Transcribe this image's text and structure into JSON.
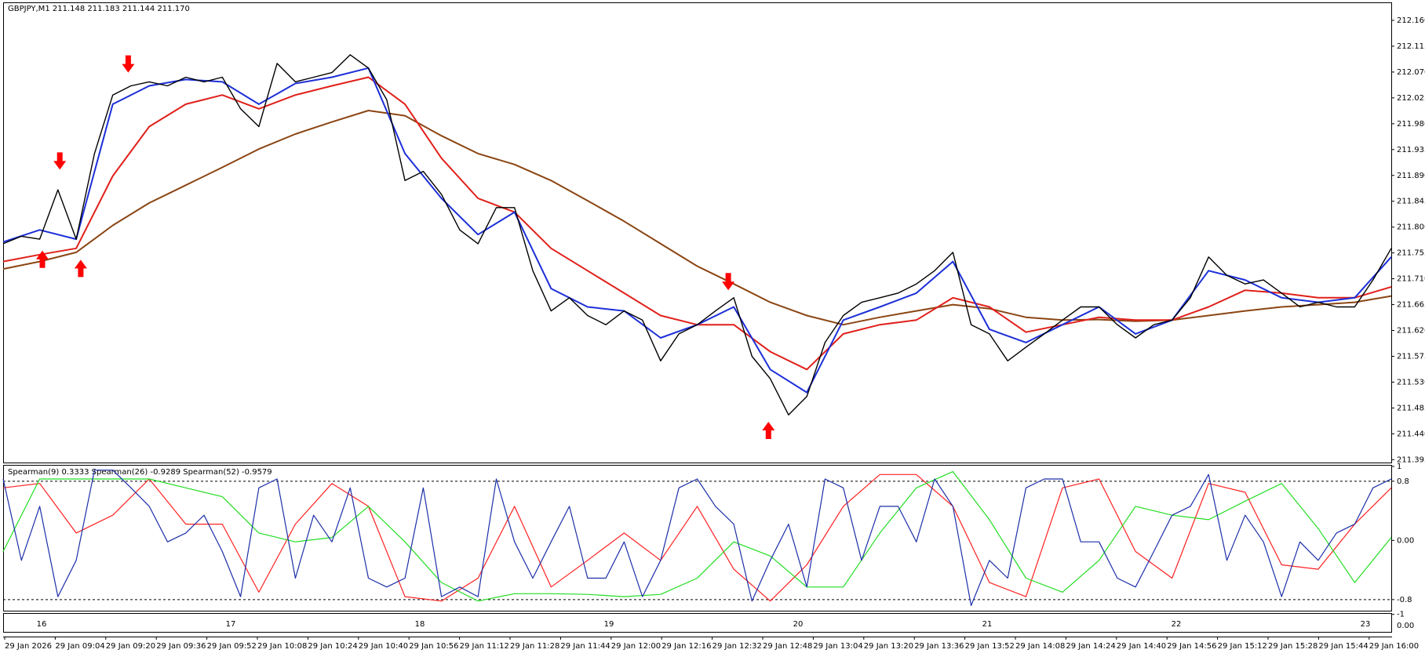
{
  "chart_data": [
    {
      "type": "line",
      "title": "GBPJPY,M1  211.148 211.183 211.144 211.170",
      "ylim": [
        211.39,
        212.19
      ],
      "yticks": [
        {
          "value": 212.16,
          "label": "212.160"
        },
        212.115,
        {
          "value": 212.07,
          "label": "212.070"
        },
        212.025,
        {
          "value": 211.98,
          "label": "211.980"
        },
        211.935,
        {
          "value": 211.89,
          "label": "211.890"
        },
        211.845,
        {
          "value": 211.8,
          "label": "211.800"
        },
        211.755,
        {
          "value": 211.71,
          "label": "211.710"
        },
        211.665,
        {
          "value": 211.62,
          "label": "211.620"
        },
        211.575,
        {
          "value": 211.53,
          "label": "211.530"
        },
        211.485,
        {
          "value": 211.44,
          "label": "211.440"
        },
        211.395
      ],
      "series": [
        {
          "color": "#000000",
          "values": [
            211.771,
            211.784,
            211.779,
            211.865,
            211.779,
            211.928,
            212.03,
            212.046,
            212.053,
            212.046,
            212.061,
            212.053,
            212.061,
            212.006,
            211.975,
            212.085,
            212.053,
            212.061,
            212.069,
            212.1,
            212.077,
            212.022,
            211.881,
            211.897,
            211.857,
            211.795,
            211.771,
            211.834,
            211.834,
            211.724,
            211.654,
            211.677,
            211.646,
            211.63,
            211.654,
            211.638,
            211.567,
            211.614,
            211.63,
            211.654,
            211.677,
            211.575,
            211.536,
            211.473,
            211.505,
            211.599,
            211.646,
            211.669,
            211.677,
            211.685,
            211.701,
            211.724,
            211.756,
            211.63,
            211.614,
            211.567,
            211.591,
            211.614,
            211.638,
            211.661,
            211.661,
            211.63,
            211.607,
            211.63,
            211.638,
            211.677,
            211.748,
            211.716,
            211.701,
            211.708,
            211.685,
            211.661,
            211.669,
            211.661,
            211.661,
            211.708,
            211.763
          ]
        }
      ],
      "ma_series": [
        {
          "color": "#8b4513",
          "values": [
            211.727,
            211.74,
            211.756,
            211.803,
            211.842,
            211.873,
            211.904,
            211.936,
            211.962,
            211.983,
            212.003,
            211.994,
            211.959,
            211.928,
            211.909,
            211.881,
            211.846,
            211.81,
            211.771,
            211.732,
            211.701,
            211.669,
            211.646,
            211.63,
            211.643,
            211.654,
            211.665,
            211.658,
            211.643,
            211.638,
            211.639,
            211.636,
            211.638,
            211.646,
            211.654,
            211.661,
            211.665,
            211.669,
            211.68
          ]
        },
        {
          "color": "#e0201a",
          "values": [
            211.74,
            211.752,
            211.763,
            211.889,
            211.975,
            212.014,
            212.03,
            212.006,
            212.03,
            212.046,
            212.061,
            212.014,
            211.92,
            211.85,
            211.826,
            211.763,
            211.724,
            211.685,
            211.646,
            211.63,
            211.63,
            211.583,
            211.552,
            211.614,
            211.63,
            211.638,
            211.677,
            211.661,
            211.617,
            211.63,
            211.643,
            211.638,
            211.638,
            211.661,
            211.69,
            211.685,
            211.677,
            211.677,
            211.696
          ]
        },
        {
          "color": "#1c2fd8",
          "values": [
            211.774,
            211.795,
            211.779,
            212.014,
            212.046,
            212.057,
            212.053,
            212.014,
            212.05,
            212.061,
            212.077,
            211.928,
            211.85,
            211.787,
            211.826,
            211.693,
            211.661,
            211.654,
            211.607,
            211.63,
            211.661,
            211.552,
            211.512,
            211.638,
            211.661,
            211.685,
            211.74,
            211.622,
            211.599,
            211.63,
            211.661,
            211.614,
            211.638,
            211.724,
            211.708,
            211.677,
            211.669,
            211.677,
            211.748
          ]
        }
      ],
      "arrows": [
        {
          "direction": "down",
          "x": 3.1,
          "y": 211.9
        },
        {
          "direction": "down",
          "x": 6.85,
          "y": 212.069
        },
        {
          "direction": "down",
          "x": 39.7,
          "y": 211.69
        },
        {
          "direction": "up",
          "x": 2.15,
          "y": 211.759
        },
        {
          "direction": "up",
          "x": 4.25,
          "y": 211.743
        },
        {
          "direction": "up",
          "x": 41.9,
          "y": 211.461
        }
      ],
      "arrow_color": "#ff0000"
    },
    {
      "type": "line",
      "title": "Spearman(9) 0.3333  Spearman(26) -0.9289  Spearman(52) -0.9579",
      "ylim": [
        -0.95,
        1.01
      ],
      "yticks": [
        1,
        0.8,
        {
          "value": 0,
          "label": "0.00"
        },
        -0.8,
        -1
      ],
      "levels": [
        0.8,
        -0.8
      ],
      "series": [
        {
          "color": "#1c2fa8",
          "values": [
            0.83,
            -0.27,
            0.46,
            -0.76,
            -0.27,
            0.95,
            0.95,
            0.71,
            0.46,
            -0.02,
            0.1,
            0.34,
            -0.15,
            -0.76,
            0.71,
            0.83,
            -0.51,
            0.34,
            -0.02,
            0.71,
            -0.51,
            -0.63,
            -0.51,
            0.71,
            -0.76,
            -0.63,
            -0.76,
            0.83,
            -0.02,
            -0.51,
            -0.02,
            0.46,
            -0.51,
            -0.51,
            -0.02,
            -0.76,
            -0.27,
            0.71,
            0.83,
            0.46,
            0.22,
            -0.82,
            -0.27,
            0.22,
            -0.63,
            0.83,
            0.71,
            -0.27,
            0.46,
            0.46,
            -0.02,
            0.83,
            0.46,
            -0.88,
            -0.27,
            -0.51,
            0.71,
            0.83,
            0.83,
            -0.02,
            -0.02,
            -0.51,
            -0.63,
            -0.15,
            0.34,
            0.46,
            0.89,
            -0.27,
            0.34,
            -0.02,
            -0.76,
            -0.02,
            -0.27,
            0.1,
            0.22,
            0.71,
            0.83
          ]
        }
      ],
      "slow_series": [
        {
          "color": "#ff2020",
          "values": [
            0.71,
            0.77,
            0.1,
            0.34,
            0.83,
            0.22,
            0.22,
            -0.7,
            0.22,
            0.77,
            0.46,
            -0.76,
            -0.82,
            -0.51,
            0.46,
            -0.63,
            -0.27,
            0.1,
            -0.27,
            0.46,
            -0.39,
            -0.82,
            -0.33,
            0.46,
            0.89,
            0.89,
            0.46,
            -0.57,
            -0.76,
            0.71,
            0.83,
            -0.15,
            -0.51,
            0.77,
            0.65,
            -0.33,
            -0.39,
            0.22,
            0.71
          ]
        },
        {
          "color": "#22dd22",
          "values": [
            -0.15,
            0.83,
            0.83,
            0.83,
            0.83,
            0.71,
            0.59,
            0.1,
            -0.02,
            0.04,
            0.46,
            -0.02,
            -0.57,
            -0.82,
            -0.72,
            -0.72,
            -0.73,
            -0.76,
            -0.73,
            -0.51,
            -0.02,
            -0.21,
            -0.63,
            -0.63,
            0.1,
            0.71,
            0.93,
            0.28,
            -0.51,
            -0.7,
            -0.27,
            0.46,
            0.34,
            0.28,
            0.53,
            0.77,
            0.16,
            -0.57,
            0.04
          ]
        }
      ]
    }
  ],
  "day_axis": {
    "labels": [
      "16",
      "17",
      "18",
      "19",
      "20",
      "21",
      "22",
      "23"
    ],
    "axis_label": "0.00"
  },
  "time_axis": {
    "labels": [
      "29 Jan 2026",
      "29 Jan 09:04",
      "29 Jan 09:20",
      "29 Jan 09:36",
      "29 Jan 09:52",
      "29 Jan 10:08",
      "29 Jan 10:24",
      "29 Jan 10:40",
      "29 Jan 10:56",
      "29 Jan 11:12",
      "29 Jan 11:28",
      "29 Jan 11:44",
      "29 Jan 12:00",
      "29 Jan 12:16",
      "29 Jan 12:32",
      "29 Jan 12:48",
      "29 Jan 13:04",
      "29 Jan 13:20",
      "29 Jan 13:36",
      "29 Jan 13:52",
      "29 Jan 14:08",
      "29 Jan 14:24",
      "29 Jan 14:40",
      "29 Jan 14:56",
      "29 Jan 15:12",
      "29 Jan 15:28",
      "29 Jan 15:44",
      "29 Jan 16:00"
    ]
  }
}
